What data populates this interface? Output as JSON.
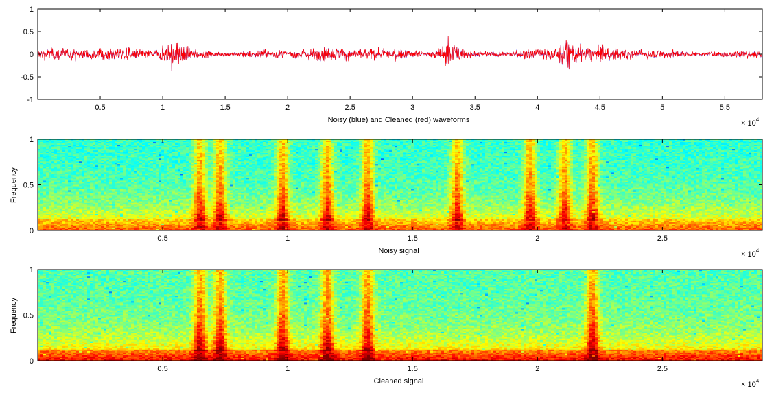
{
  "chart_data": [
    {
      "type": "line",
      "title": "",
      "xlabel": "Noisy (blue) and Cleaned (red) waveforms",
      "ylabel": "",
      "xlim": [
        0,
        58000
      ],
      "ylim": [
        -1,
        1
      ],
      "x_exponent_label": "× 10",
      "x_exponent_power": "4",
      "x_ticks": [
        {
          "value": 5000,
          "label": "0.5"
        },
        {
          "value": 10000,
          "label": "1"
        },
        {
          "value": 15000,
          "label": "1.5"
        },
        {
          "value": 20000,
          "label": "2"
        },
        {
          "value": 25000,
          "label": "2.5"
        },
        {
          "value": 30000,
          "label": "3"
        },
        {
          "value": 35000,
          "label": "3.5"
        },
        {
          "value": 40000,
          "label": "4"
        },
        {
          "value": 45000,
          "label": "4.5"
        },
        {
          "value": 50000,
          "label": "5"
        },
        {
          "value": 55000,
          "label": "5.5"
        }
      ],
      "y_ticks": [
        {
          "value": 1,
          "label": "1"
        },
        {
          "value": 0.5,
          "label": "0.5"
        },
        {
          "value": 0,
          "label": "0"
        },
        {
          "value": -0.5,
          "label": "-0.5"
        },
        {
          "value": -1,
          "label": "-1"
        }
      ],
      "grid": false,
      "series": [
        {
          "name": "Noisy",
          "color": "#0000ff",
          "base_amplitude": 0.12
        },
        {
          "name": "Cleaned",
          "color": "#ff0000",
          "base_amplitude": 0.12
        }
      ],
      "bursts": [
        {
          "x": 11000,
          "amplitude": 0.4
        },
        {
          "x": 33000,
          "amplitude": 0.38
        },
        {
          "x": 42500,
          "amplitude": 0.3
        }
      ]
    },
    {
      "type": "heatmap",
      "title": "",
      "xlabel": "Noisy signal",
      "ylabel": "Frequency",
      "xlim": [
        0,
        29000
      ],
      "ylim": [
        0,
        1
      ],
      "x_exponent_label": "× 10",
      "x_exponent_power": "4",
      "colormap": "jet",
      "x_ticks": [
        {
          "value": 5000,
          "label": "0.5"
        },
        {
          "value": 10000,
          "label": "1"
        },
        {
          "value": 15000,
          "label": "1.5"
        },
        {
          "value": 20000,
          "label": "2"
        },
        {
          "value": 25000,
          "label": "2.5"
        }
      ],
      "y_ticks": [
        {
          "value": 1,
          "label": "1"
        },
        {
          "value": 0.5,
          "label": "0.5"
        },
        {
          "value": 0,
          "label": "0"
        }
      ],
      "background_level": 0.42,
      "low_band_level": 0.8,
      "speech_events_x": [
        6500,
        7300,
        9800,
        11600,
        13200,
        16800,
        19700,
        21100,
        22200
      ]
    },
    {
      "type": "heatmap",
      "title": "",
      "xlabel": "Cleaned signal",
      "ylabel": "Frequency",
      "xlim": [
        0,
        29000
      ],
      "ylim": [
        0,
        1
      ],
      "x_exponent_label": "× 10",
      "x_exponent_power": "4",
      "colormap": "jet",
      "x_ticks": [
        {
          "value": 5000,
          "label": "0.5"
        },
        {
          "value": 10000,
          "label": "1"
        },
        {
          "value": 15000,
          "label": "1.5"
        },
        {
          "value": 20000,
          "label": "2"
        },
        {
          "value": 25000,
          "label": "2.5"
        }
      ],
      "y_ticks": [
        {
          "value": 1,
          "label": "1"
        },
        {
          "value": 0.5,
          "label": "0.5"
        },
        {
          "value": 0,
          "label": "0"
        }
      ],
      "background_level": 0.45,
      "low_band_level": 0.88,
      "speech_events_x": [
        6500,
        7300,
        9800,
        11600,
        13200,
        22200
      ]
    }
  ]
}
